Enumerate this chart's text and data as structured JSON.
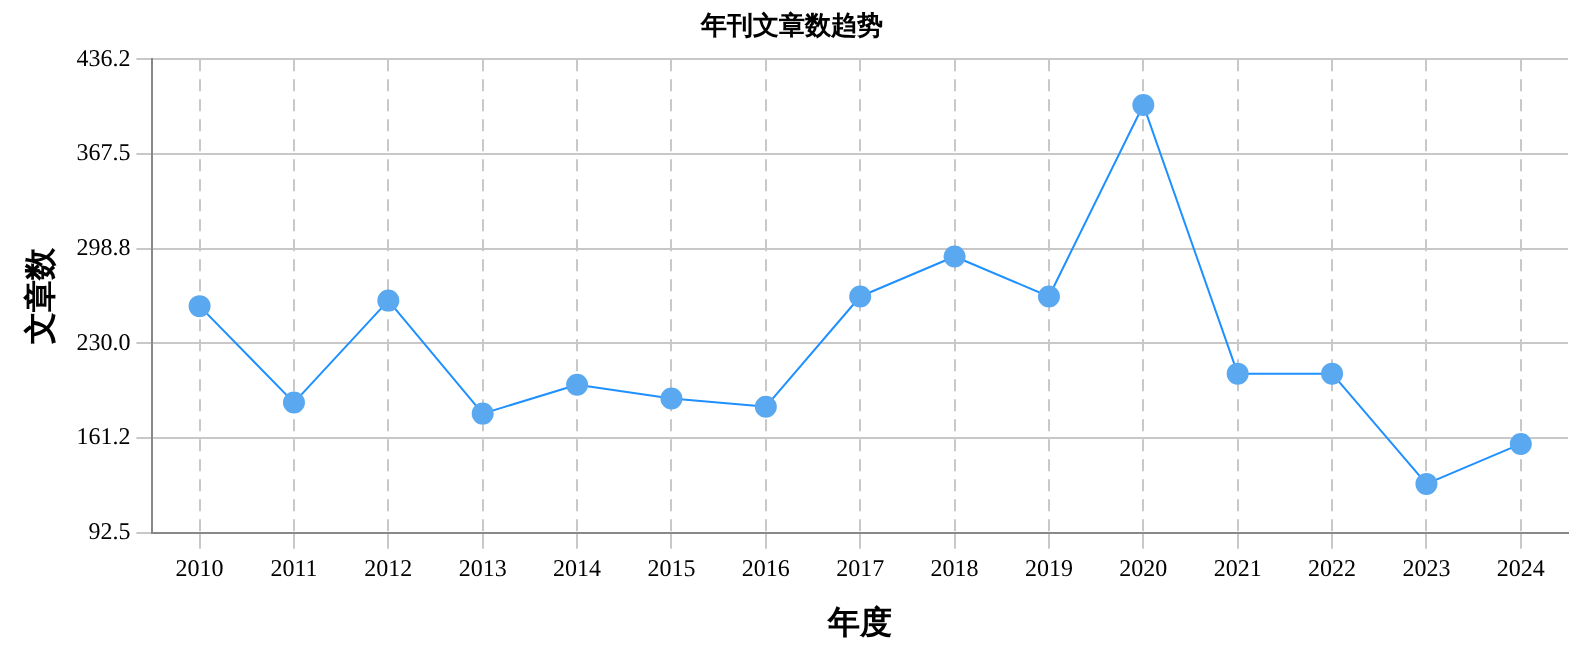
{
  "chart_data": {
    "type": "line",
    "title": "年刊文章数趋势",
    "xlabel": "年度",
    "ylabel": "文章数",
    "categories": [
      "2010",
      "2011",
      "2012",
      "2013",
      "2014",
      "2015",
      "2016",
      "2017",
      "2018",
      "2019",
      "2020",
      "2021",
      "2022",
      "2023",
      "2024"
    ],
    "series": [
      {
        "color": "#1e90ff",
        "values": [
          257,
          187,
          261,
          179,
          200,
          190,
          184,
          264,
          293,
          264,
          403,
          208,
          208,
          128,
          157
        ]
      }
    ],
    "ylim": [
      92.5,
      436.2
    ],
    "yticks": [
      {
        "value": 92.5,
        "label": "92.5"
      },
      {
        "value": 161.2,
        "label": "161.2"
      },
      {
        "value": 230,
        "label": "230.0"
      },
      {
        "value": 298.8,
        "label": "298.8"
      },
      {
        "value": 367.5,
        "label": "367.5"
      },
      {
        "value": 436.2,
        "label": "436.2"
      }
    ],
    "grid": true,
    "legend": false,
    "marker": "circle",
    "line_style": "solid"
  }
}
